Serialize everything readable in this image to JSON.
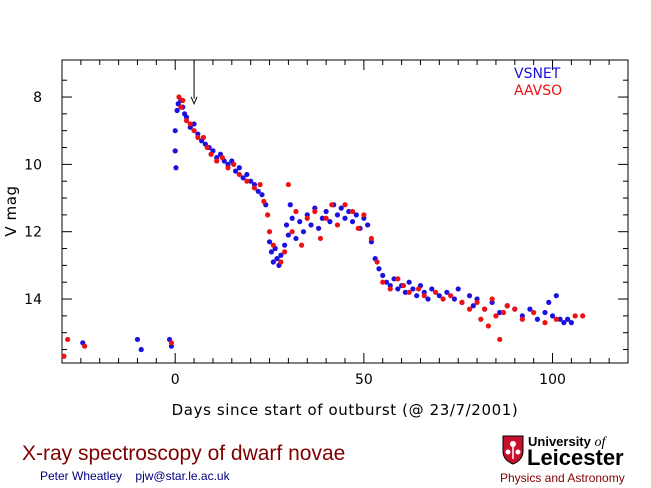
{
  "slide": {
    "title": "X-ray spectroscopy of dwarf novae",
    "author": "Peter Wheatley",
    "email": "pjw@star.le.ac.uk",
    "logo": {
      "line1": "University",
      "line1_of": "of",
      "line2": "Leicester",
      "department": "Physics and Astronomy",
      "crest_icon": "university-crest-icon"
    }
  },
  "colors": {
    "title": "#800000",
    "author": "#000080",
    "vsnet": "#1a10e0",
    "aavso": "#ee1111",
    "arrow": "#000000"
  },
  "chart_data": {
    "type": "scatter",
    "xlabel": "Days since start of outburst (@ 23/7/2001)",
    "ylabel": "V mag",
    "xlim": [
      -30,
      120
    ],
    "ylim": [
      15.9,
      6.9
    ],
    "y_inverted": true,
    "xticks": [
      0,
      50,
      100
    ],
    "yticks": [
      8,
      10,
      12,
      14
    ],
    "legend_position": "top-right",
    "grid": false,
    "annotation": {
      "type": "arrow",
      "x": 5,
      "y_from": 6.9,
      "y_to": 8.2
    },
    "series": [
      {
        "name": "VSNET",
        "points": [
          [
            -24.5,
            15.3
          ],
          [
            -10,
            15.2
          ],
          [
            -9,
            15.5
          ],
          [
            -1.5,
            15.2
          ],
          [
            -1,
            15.4
          ],
          [
            0.0,
            9.0
          ],
          [
            0.0,
            9.6
          ],
          [
            0.2,
            10.1
          ],
          [
            0.5,
            8.4
          ],
          [
            0.8,
            8.2
          ],
          [
            1.5,
            8.1
          ],
          [
            2.0,
            8.3
          ],
          [
            2.5,
            8.5
          ],
          [
            3.0,
            8.6
          ],
          [
            4.0,
            8.9
          ],
          [
            5.0,
            8.8
          ],
          [
            6.0,
            9.1
          ],
          [
            7.0,
            9.3
          ],
          [
            8.0,
            9.4
          ],
          [
            9.0,
            9.5
          ],
          [
            10.0,
            9.6
          ],
          [
            11.0,
            9.8
          ],
          [
            12.0,
            9.7
          ],
          [
            13.0,
            9.9
          ],
          [
            14.0,
            10.0
          ],
          [
            15.0,
            9.9
          ],
          [
            16.0,
            10.2
          ],
          [
            17.0,
            10.1
          ],
          [
            18.0,
            10.4
          ],
          [
            19.0,
            10.3
          ],
          [
            20.0,
            10.5
          ],
          [
            21.0,
            10.6
          ],
          [
            22.0,
            10.8
          ],
          [
            23.0,
            10.9
          ],
          [
            24.0,
            11.2
          ],
          [
            25.0,
            12.3
          ],
          [
            25.5,
            12.6
          ],
          [
            26.0,
            12.9
          ],
          [
            26.5,
            12.5
          ],
          [
            27.0,
            12.8
          ],
          [
            27.5,
            13.0
          ],
          [
            28.0,
            12.7
          ],
          [
            29.0,
            12.4
          ],
          [
            29.5,
            11.8
          ],
          [
            30.0,
            12.1
          ],
          [
            30.5,
            11.2
          ],
          [
            31.0,
            11.6
          ],
          [
            32.0,
            12.2
          ],
          [
            33.0,
            11.7
          ],
          [
            34.0,
            12.0
          ],
          [
            35.0,
            11.5
          ],
          [
            36.0,
            11.8
          ],
          [
            37.0,
            11.3
          ],
          [
            38.0,
            11.9
          ],
          [
            39.0,
            11.6
          ],
          [
            40.0,
            11.4
          ],
          [
            41.0,
            11.7
          ],
          [
            42.0,
            11.2
          ],
          [
            43.0,
            11.5
          ],
          [
            44.0,
            11.3
          ],
          [
            45.0,
            11.6
          ],
          [
            46.0,
            11.4
          ],
          [
            47.0,
            11.7
          ],
          [
            48.0,
            11.5
          ],
          [
            49.0,
            11.9
          ],
          [
            50.0,
            11.6
          ],
          [
            51.0,
            11.8
          ],
          [
            52.0,
            12.3
          ],
          [
            53.0,
            12.8
          ],
          [
            54.0,
            13.1
          ],
          [
            55.0,
            13.3
          ],
          [
            56.0,
            13.5
          ],
          [
            57.0,
            13.6
          ],
          [
            58.0,
            13.4
          ],
          [
            59.0,
            13.7
          ],
          [
            60.0,
            13.6
          ],
          [
            61.0,
            13.8
          ],
          [
            62.0,
            13.5
          ],
          [
            63.0,
            13.7
          ],
          [
            64.0,
            13.9
          ],
          [
            65.0,
            13.6
          ],
          [
            66.0,
            13.8
          ],
          [
            67.0,
            14.0
          ],
          [
            68.0,
            13.7
          ],
          [
            70.0,
            13.9
          ],
          [
            72.0,
            13.8
          ],
          [
            74.0,
            14.0
          ],
          [
            75.0,
            13.7
          ],
          [
            76.0,
            14.1
          ],
          [
            78.0,
            13.9
          ],
          [
            79.0,
            14.2
          ],
          [
            80.0,
            14.0
          ],
          [
            82.0,
            14.3
          ],
          [
            84.0,
            14.1
          ],
          [
            86.0,
            14.4
          ],
          [
            88.0,
            14.2
          ],
          [
            90.0,
            14.3
          ],
          [
            92.0,
            14.5
          ],
          [
            94.0,
            14.3
          ],
          [
            96.0,
            14.6
          ],
          [
            98.0,
            14.4
          ],
          [
            99.0,
            14.1
          ],
          [
            100.0,
            14.5
          ],
          [
            101.0,
            13.9
          ],
          [
            102.0,
            14.6
          ],
          [
            103.0,
            14.7
          ],
          [
            104.0,
            14.6
          ],
          [
            105.0,
            14.7
          ]
        ]
      },
      {
        "name": "AAVSO",
        "points": [
          [
            -29.5,
            15.7
          ],
          [
            -28.5,
            15.2
          ],
          [
            -24,
            15.4
          ],
          [
            -1,
            15.3
          ],
          [
            1.0,
            8.0
          ],
          [
            1.5,
            8.3
          ],
          [
            2.0,
            8.1
          ],
          [
            3.0,
            8.7
          ],
          [
            4.0,
            8.8
          ],
          [
            5.0,
            9.0
          ],
          [
            6.0,
            9.2
          ],
          [
            7.5,
            9.2
          ],
          [
            8.5,
            9.5
          ],
          [
            9.5,
            9.7
          ],
          [
            11.0,
            9.9
          ],
          [
            12.5,
            9.8
          ],
          [
            14.0,
            10.1
          ],
          [
            15.5,
            10.0
          ],
          [
            17.0,
            10.3
          ],
          [
            19.0,
            10.5
          ],
          [
            21.0,
            10.7
          ],
          [
            22.5,
            10.6
          ],
          [
            23.5,
            11.1
          ],
          [
            24.5,
            11.5
          ],
          [
            25.0,
            12.0
          ],
          [
            26.0,
            12.4
          ],
          [
            28.0,
            12.9
          ],
          [
            29.0,
            12.6
          ],
          [
            30.0,
            10.6
          ],
          [
            31.0,
            12.0
          ],
          [
            32.0,
            11.4
          ],
          [
            33.5,
            12.4
          ],
          [
            35.0,
            11.6
          ],
          [
            37.0,
            11.4
          ],
          [
            38.5,
            12.2
          ],
          [
            40.0,
            11.6
          ],
          [
            41.5,
            11.2
          ],
          [
            43.0,
            11.8
          ],
          [
            45.0,
            11.2
          ],
          [
            47.0,
            11.4
          ],
          [
            48.5,
            11.9
          ],
          [
            50.0,
            11.5
          ],
          [
            52.0,
            12.2
          ],
          [
            53.5,
            12.9
          ],
          [
            55.0,
            13.5
          ],
          [
            57.0,
            13.7
          ],
          [
            59.0,
            13.4
          ],
          [
            60.5,
            13.6
          ],
          [
            62.0,
            13.8
          ],
          [
            64.5,
            13.7
          ],
          [
            66.0,
            13.9
          ],
          [
            69.0,
            13.8
          ],
          [
            71.0,
            14.0
          ],
          [
            73.0,
            13.9
          ],
          [
            76.0,
            14.1
          ],
          [
            78.0,
            14.3
          ],
          [
            80.0,
            14.1
          ],
          [
            81.0,
            14.6
          ],
          [
            82.0,
            14.3
          ],
          [
            83.0,
            14.8
          ],
          [
            84.0,
            14.0
          ],
          [
            85.0,
            14.5
          ],
          [
            86.0,
            15.2
          ],
          [
            87.0,
            14.4
          ],
          [
            88.0,
            14.2
          ],
          [
            90.0,
            14.3
          ],
          [
            92.0,
            14.6
          ],
          [
            95.0,
            14.4
          ],
          [
            98.0,
            14.7
          ],
          [
            101.0,
            14.6
          ],
          [
            106.0,
            14.5
          ],
          [
            108.0,
            14.5
          ]
        ]
      }
    ]
  }
}
